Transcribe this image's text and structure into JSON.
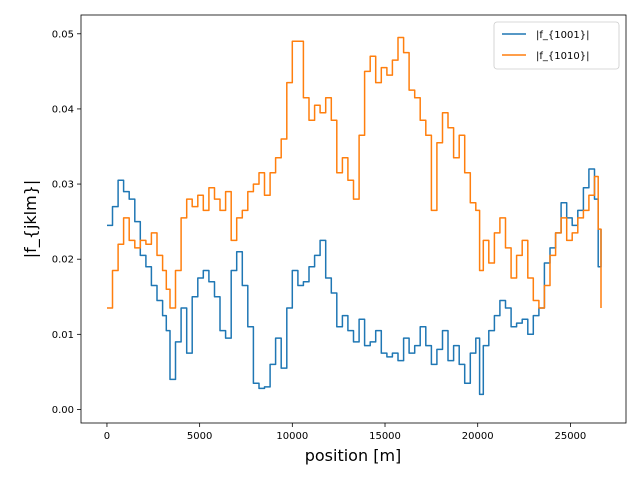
{
  "chart_data": {
    "type": "line",
    "title": "",
    "xlabel": "position [m]",
    "ylabel": "|f_{jklm}|",
    "xlim": [
      -1400,
      28000
    ],
    "ylim": [
      -0.0018,
      0.0525
    ],
    "x_ticks": [
      0,
      5000,
      10000,
      15000,
      20000,
      25000
    ],
    "y_ticks": [
      0.0,
      0.01,
      0.02,
      0.03,
      0.04,
      0.05
    ],
    "x_tick_labels": [
      "0",
      "5000",
      "10000",
      "15000",
      "20000",
      "25000"
    ],
    "y_tick_labels": [
      "0.00",
      "0.01",
      "0.02",
      "0.03",
      "0.04",
      "0.05"
    ],
    "grid": false,
    "legend_position": "top-right",
    "series": [
      {
        "name": "|f_{1001}|",
        "color": "#1f77b4",
        "x": [
          0,
          300,
          600,
          900,
          1200,
          1500,
          1800,
          2100,
          2400,
          2700,
          3000,
          3200,
          3400,
          3700,
          4000,
          4300,
          4600,
          4900,
          5200,
          5500,
          5800,
          6100,
          6400,
          6700,
          7000,
          7300,
          7600,
          7900,
          8200,
          8500,
          8800,
          9100,
          9400,
          9700,
          10000,
          10300,
          10600,
          10900,
          11200,
          11500,
          11800,
          12100,
          12400,
          12700,
          13000,
          13300,
          13600,
          13900,
          14200,
          14500,
          14800,
          15100,
          15400,
          15700,
          16000,
          16300,
          16600,
          16900,
          17200,
          17500,
          17800,
          18100,
          18400,
          18700,
          19000,
          19300,
          19600,
          19900,
          20100,
          20300,
          20600,
          20900,
          21200,
          21500,
          21800,
          22100,
          22400,
          22700,
          23000,
          23300,
          23600,
          23900,
          24200,
          24500,
          24800,
          25100,
          25400,
          25700,
          26000,
          26300,
          26500,
          26650
        ],
        "values": [
          0.0245,
          0.027,
          0.0305,
          0.029,
          0.028,
          0.025,
          0.0205,
          0.019,
          0.0165,
          0.0145,
          0.0125,
          0.0105,
          0.004,
          0.009,
          0.0135,
          0.0075,
          0.015,
          0.0175,
          0.0185,
          0.017,
          0.015,
          0.0105,
          0.0095,
          0.0185,
          0.021,
          0.0165,
          0.011,
          0.0035,
          0.0028,
          0.003,
          0.006,
          0.0095,
          0.0055,
          0.0135,
          0.0185,
          0.0165,
          0.017,
          0.019,
          0.0205,
          0.0225,
          0.0175,
          0.0155,
          0.011,
          0.0125,
          0.0105,
          0.009,
          0.012,
          0.0085,
          0.009,
          0.0105,
          0.0075,
          0.007,
          0.0075,
          0.0065,
          0.0095,
          0.0075,
          0.0085,
          0.011,
          0.0085,
          0.006,
          0.008,
          0.0105,
          0.0065,
          0.0085,
          0.006,
          0.0035,
          0.0075,
          0.0095,
          0.002,
          0.0085,
          0.0105,
          0.0125,
          0.0145,
          0.0135,
          0.011,
          0.0115,
          0.012,
          0.01,
          0.0125,
          0.0135,
          0.0195,
          0.0215,
          0.0235,
          0.0275,
          0.0255,
          0.0245,
          0.0265,
          0.0295,
          0.032,
          0.028,
          0.019,
          0.024
        ]
      },
      {
        "name": "|f_{1010}|",
        "color": "#ff7f0e",
        "x": [
          0,
          300,
          600,
          900,
          1200,
          1500,
          1800,
          2100,
          2400,
          2700,
          3000,
          3200,
          3400,
          3700,
          4000,
          4300,
          4600,
          4900,
          5200,
          5500,
          5800,
          6100,
          6400,
          6700,
          7000,
          7300,
          7600,
          7900,
          8200,
          8500,
          8800,
          9100,
          9400,
          9700,
          10000,
          10300,
          10600,
          10900,
          11200,
          11500,
          11800,
          12100,
          12400,
          12700,
          13000,
          13300,
          13600,
          13900,
          14200,
          14500,
          14800,
          15100,
          15400,
          15700,
          16000,
          16300,
          16600,
          16900,
          17200,
          17500,
          17800,
          18100,
          18400,
          18700,
          19000,
          19300,
          19600,
          19900,
          20100,
          20300,
          20600,
          20900,
          21200,
          21500,
          21800,
          22100,
          22400,
          22700,
          23000,
          23300,
          23600,
          23900,
          24200,
          24500,
          24800,
          25100,
          25400,
          25700,
          26000,
          26300,
          26500,
          26650
        ],
        "values": [
          0.0135,
          0.0185,
          0.022,
          0.0255,
          0.0225,
          0.0215,
          0.0225,
          0.022,
          0.0235,
          0.0205,
          0.0185,
          0.016,
          0.0135,
          0.0185,
          0.0255,
          0.028,
          0.027,
          0.0285,
          0.0265,
          0.0295,
          0.028,
          0.0265,
          0.029,
          0.0225,
          0.0255,
          0.0265,
          0.029,
          0.03,
          0.0315,
          0.0285,
          0.0315,
          0.0335,
          0.036,
          0.0435,
          0.049,
          0.049,
          0.0415,
          0.0385,
          0.0405,
          0.0395,
          0.0415,
          0.0385,
          0.0315,
          0.0335,
          0.0305,
          0.028,
          0.0365,
          0.045,
          0.047,
          0.0435,
          0.0455,
          0.0445,
          0.0465,
          0.0495,
          0.0475,
          0.0425,
          0.0415,
          0.0385,
          0.0365,
          0.0265,
          0.0355,
          0.0395,
          0.0375,
          0.0335,
          0.0365,
          0.0315,
          0.0275,
          0.0265,
          0.0185,
          0.0225,
          0.0195,
          0.0235,
          0.0255,
          0.0215,
          0.0175,
          0.0205,
          0.0225,
          0.0175,
          0.0145,
          0.0135,
          0.0165,
          0.0205,
          0.0235,
          0.0255,
          0.0225,
          0.0235,
          0.0255,
          0.0265,
          0.0285,
          0.031,
          0.024,
          0.0135
        ]
      }
    ]
  }
}
